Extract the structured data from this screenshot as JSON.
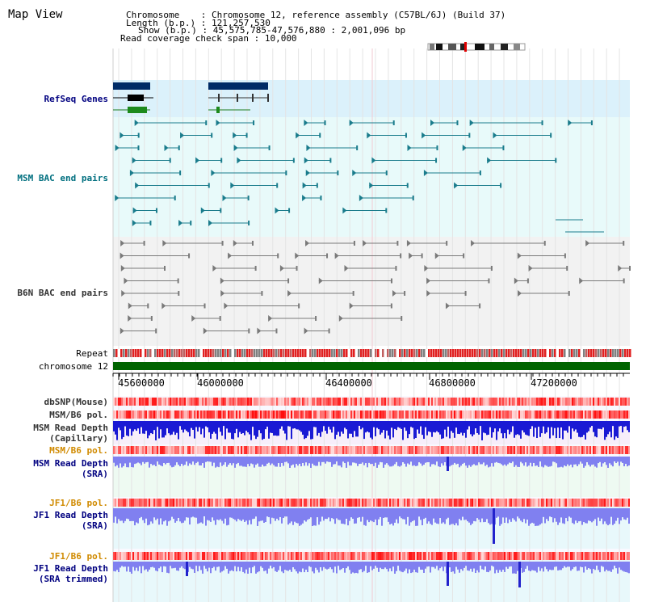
{
  "page": {
    "title": "Map View"
  },
  "info": {
    "chromosome_key": "Chromosome",
    "chromosome_val": ": Chromosome 12, reference assembly (C57BL/6J) (Build 37)",
    "length_key": "Length (b.p.)",
    "length_val": ": 121,257,530",
    "show_key": "Show (b.p.)",
    "show_val": ": 45,575,785-47,576,880 : 2,001,096 bp",
    "coverage_key": "Read coverage check span",
    "coverage_val": ": 10,000"
  },
  "labels": {
    "refseq": "RefSeq Genes",
    "msm_bac": "MSM BAC end pairs",
    "b6n_bac": "B6N BAC end pairs",
    "repeat": "Repeat",
    "chromosome": "chromosome 12",
    "dbsnp": "dbSNP(Mouse)",
    "msm_b6_pol_1": "MSM/B6 pol.",
    "msm_read_depth_cap_1": "MSM Read Depth",
    "msm_read_depth_cap_2": "(Capillary)",
    "msm_b6_pol_2": "MSM/B6 pol.",
    "msm_read_depth_sra_1": "MSM Read Depth",
    "msm_read_depth_sra_2": "(SRA)",
    "jf1_b6_pol_1": "JF1/B6 pol.",
    "jf1_read_depth_sra_1": "JF1 Read Depth",
    "jf1_read_depth_sra_2": "(SRA)",
    "jf1_b6_pol_2": "JF1/B6 pol.",
    "jf1_read_depth_trim_1": "JF1 Read Depth",
    "jf1_read_depth_trim_2": "(SRA trimmed)"
  },
  "axis": {
    "ticks": [
      "45600000",
      "46000000",
      "46400000",
      "46800000",
      "47200000"
    ]
  },
  "colors": {
    "refseq_bg": "#dbf1fb",
    "msm_bg": "#e8fafa",
    "b6n_bg": "#f2f2f2",
    "chromosome_bar": "#006400",
    "refseq_gene": "#002b66",
    "msm_pair": "#1a7c8c",
    "b6n_pair": "#7a7a7a",
    "cap_depth": "#1a1ad4",
    "sra_depth": "#8080f0"
  }
}
